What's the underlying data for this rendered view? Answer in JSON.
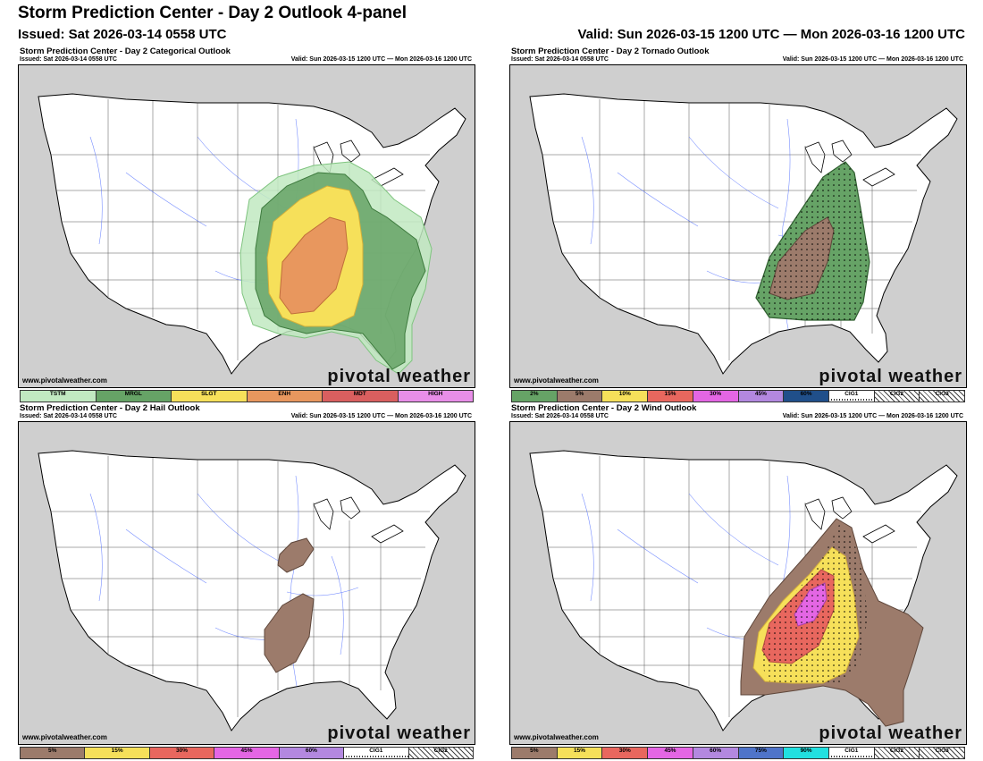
{
  "header": {
    "title": "Storm Prediction Center - Day 2 Outlook 4-panel",
    "issued": "Issued: Sat 2026-03-14 0558 UTC",
    "valid": "Valid: Sun 2026-03-15 1200 UTC — Mon 2026-03-16 1200 UTC"
  },
  "panel_common": {
    "issued": "Issued: Sat 2026-03-14 0558 UTC",
    "valid": "Valid: Sun 2026-03-15 1200 UTC — Mon 2026-03-16 1200 UTC",
    "footer": "www.pivotalweather.com",
    "brand": "pivotal weather"
  },
  "panels": [
    {
      "title": "Storm Prediction Center - Day 2 Categorical Outlook",
      "legend": [
        {
          "label": "TSTM",
          "color": "#c1e9c1"
        },
        {
          "label": "MRGL",
          "color": "#66a366"
        },
        {
          "label": "SLGT",
          "color": "#f6e05a"
        },
        {
          "label": "ENH",
          "color": "#e8975e"
        },
        {
          "label": "MDT",
          "color": "#d95f5f"
        },
        {
          "label": "HIGH",
          "color": "#e88ee8"
        }
      ]
    },
    {
      "title": "Storm Prediction Center - Day 2 Tornado Outlook",
      "legend": [
        {
          "label": "2%",
          "color": "#66a366"
        },
        {
          "label": "5%",
          "color": "#9c7b6b"
        },
        {
          "label": "10%",
          "color": "#f6e05a"
        },
        {
          "label": "15%",
          "color": "#e8675e"
        },
        {
          "label": "30%",
          "color": "#e466e4"
        },
        {
          "label": "45%",
          "color": "#b388e0"
        },
        {
          "label": "60%",
          "color": "#204f8a"
        },
        {
          "label": "CIG1",
          "color": "hatch1"
        },
        {
          "label": "CIG2",
          "color": "hatch2"
        },
        {
          "label": "CIG3",
          "color": "hatch3"
        }
      ]
    },
    {
      "title": "Storm Prediction Center - Day 2 Hail Outlook",
      "legend": [
        {
          "label": "5%",
          "color": "#9c7b6b"
        },
        {
          "label": "15%",
          "color": "#f6e05a"
        },
        {
          "label": "30%",
          "color": "#e8675e"
        },
        {
          "label": "45%",
          "color": "#e466e4"
        },
        {
          "label": "60%",
          "color": "#b388e0"
        },
        {
          "label": "CIG1",
          "color": "hatch1"
        },
        {
          "label": "CIG2",
          "color": "hatch2"
        }
      ]
    },
    {
      "title": "Storm Prediction Center - Day 2 Wind Outlook",
      "legend": [
        {
          "label": "5%",
          "color": "#9c7b6b"
        },
        {
          "label": "15%",
          "color": "#f6e05a"
        },
        {
          "label": "30%",
          "color": "#e8675e"
        },
        {
          "label": "45%",
          "color": "#e466e4"
        },
        {
          "label": "60%",
          "color": "#b388e0"
        },
        {
          "label": "75%",
          "color": "#4f74c9"
        },
        {
          "label": "90%",
          "color": "#22e0e0"
        },
        {
          "label": "CIG1",
          "color": "hatch1"
        },
        {
          "label": "CIG2",
          "color": "hatch2"
        },
        {
          "label": "CIG3",
          "color": "hatch3"
        }
      ]
    }
  ],
  "colors": {
    "land": "#ffffff",
    "outside": "#cfcfcf",
    "water": "#ffffff",
    "rivers": "#3f5fff",
    "borders": "#000000"
  }
}
